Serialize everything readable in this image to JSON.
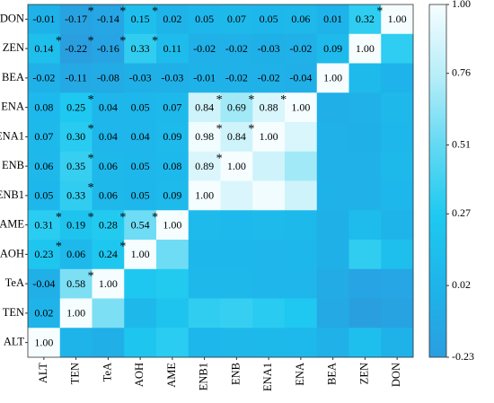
{
  "chart_data": {
    "type": "heatmap",
    "rows": [
      "DON",
      "ZEN",
      "BEA",
      "ENA",
      "ENA1",
      "ENB",
      "ENB1",
      "AME",
      "AOH",
      "TeA",
      "TEN",
      "ALT"
    ],
    "columns": [
      "ALT",
      "TEN",
      "TeA",
      "AOH",
      "AME",
      "ENB1",
      "ENB",
      "ENA1",
      "ENA",
      "BEA",
      "ZEN",
      "DON"
    ],
    "values": [
      [
        -0.01,
        -0.17,
        -0.14,
        0.15,
        0.02,
        0.05,
        0.07,
        0.05,
        0.06,
        0.01,
        0.32,
        1
      ],
      [
        0.14,
        -0.22,
        -0.16,
        0.33,
        0.11,
        -0.02,
        -0.02,
        -0.03,
        -0.02,
        0.09,
        1
      ],
      [
        -0.02,
        -0.11,
        -0.08,
        -0.03,
        -0.03,
        -0.01,
        -0.02,
        -0.02,
        -0.04,
        1
      ],
      [
        0.08,
        0.25,
        0.04,
        0.05,
        0.07,
        0.84,
        0.69,
        0.88,
        1
      ],
      [
        0.07,
        0.3,
        0.04,
        0.04,
        0.09,
        0.98,
        0.84,
        1
      ],
      [
        0.06,
        0.35,
        0.06,
        0.05,
        0.08,
        0.89,
        1
      ],
      [
        0.05,
        0.33,
        0.06,
        0.05,
        0.09,
        1
      ],
      [
        0.31,
        0.19,
        0.28,
        0.54,
        1
      ],
      [
        0.23,
        0.06,
        0.24,
        1
      ],
      [
        -0.04,
        0.58,
        1
      ],
      [
        0.02,
        1
      ],
      [
        1
      ]
    ],
    "value_labels": [
      [
        "-0.01",
        "-0.17",
        "-0.14",
        "0.15",
        "0.02",
        "0.05",
        "0.07",
        "0.05",
        "0.06",
        "0.01",
        "0.32",
        "1.00"
      ],
      [
        "0.14",
        "-0.22",
        "-0.16",
        "0.33",
        "0.11",
        "-0.02",
        "-0.02",
        "-0.03",
        "-0.02",
        "0.09",
        "1.00"
      ],
      [
        "-0.02",
        "-0.11",
        "-0.08",
        "-0.03",
        "-0.03",
        "-0.01",
        "-0.02",
        "-0.02",
        "-0.04",
        "1.00"
      ],
      [
        "0.08",
        "0.25",
        "0.04",
        "0.05",
        "0.07",
        "0.84",
        "0.69",
        "0.88",
        "1.00"
      ],
      [
        "0.07",
        "0.30",
        "0.04",
        "0.04",
        "0.09",
        "0.98",
        "0.84",
        "1.00"
      ],
      [
        "0.06",
        "0.35",
        "0.06",
        "0.05",
        "0.08",
        "0.89",
        "1.00"
      ],
      [
        "0.05",
        "0.33",
        "0.06",
        "0.05",
        "0.09",
        "1.00"
      ],
      [
        "0.31",
        "0.19",
        "0.28",
        "0.54",
        "1.00"
      ],
      [
        "0.23",
        "0.06",
        "0.24",
        "1.00"
      ],
      [
        "-0.04",
        "0.58",
        "1.00"
      ],
      [
        "0.02",
        "1.00"
      ],
      [
        "1.00"
      ]
    ],
    "significance_marker": "*",
    "significant": [
      [
        false,
        true,
        true,
        true,
        false,
        false,
        false,
        false,
        false,
        false,
        true,
        false
      ],
      [
        true,
        true,
        true,
        true,
        false,
        false,
        false,
        false,
        false,
        false,
        false
      ],
      [
        false,
        false,
        false,
        false,
        false,
        false,
        false,
        false,
        false,
        false
      ],
      [
        false,
        true,
        false,
        false,
        false,
        true,
        true,
        true,
        false
      ],
      [
        false,
        true,
        false,
        false,
        false,
        true,
        true,
        false
      ],
      [
        false,
        true,
        false,
        false,
        false,
        true,
        false
      ],
      [
        false,
        true,
        false,
        false,
        false,
        false
      ],
      [
        true,
        true,
        true,
        true,
        false
      ],
      [
        true,
        false,
        true,
        false
      ],
      [
        false,
        true,
        false
      ],
      [
        false,
        false
      ],
      [
        false
      ]
    ],
    "zlim": [
      -0.23,
      1
    ],
    "zticks": [
      {
        "value": 1,
        "label": "1.00"
      },
      0.76,
      0.51,
      0.27,
      0.02,
      -0.23
    ],
    "colorscale": [
      "#2a9ee0",
      "#1eb4ea",
      "#1ec9f0",
      "#63d9f3",
      "#b8eef8",
      "#f6fdff"
    ]
  }
}
